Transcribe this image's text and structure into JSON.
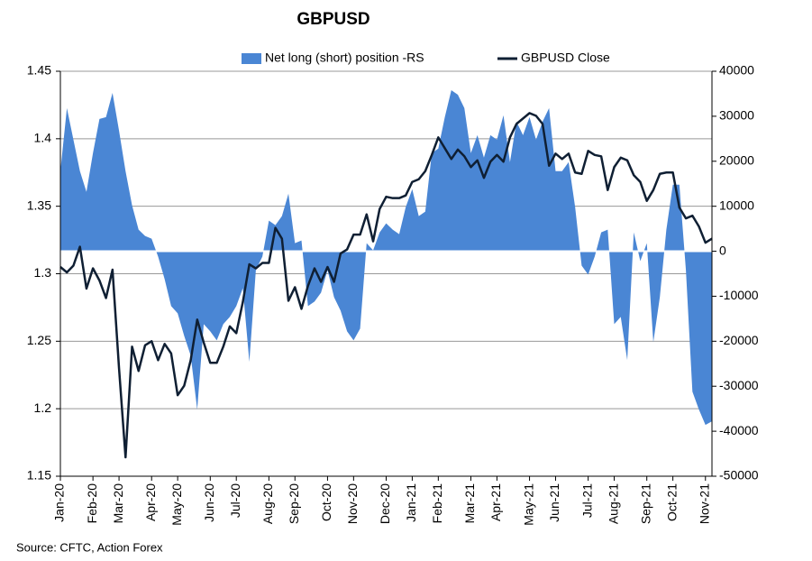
{
  "chart_data": {
    "type": "line-area",
    "title": "GBPUSD",
    "source": "Source: CFTC, Action Forex",
    "legend": "top",
    "grid": true,
    "categories": [
      "Jan-20",
      null,
      null,
      null,
      null,
      "Feb-20",
      null,
      null,
      null,
      "Mar-20",
      null,
      null,
      null,
      null,
      "Apr-20",
      null,
      null,
      null,
      "May-20",
      null,
      null,
      null,
      null,
      "Jun-20",
      null,
      null,
      null,
      "Jul-20",
      null,
      null,
      null,
      null,
      "Aug-20",
      null,
      null,
      null,
      "Sep-20",
      null,
      null,
      null,
      null,
      "Oct-20",
      null,
      null,
      null,
      "Nov-20",
      null,
      null,
      null,
      null,
      "Dec-20",
      null,
      null,
      null,
      "Jan-21",
      null,
      null,
      null,
      "Feb-21",
      null,
      null,
      null,
      null,
      "Mar-21",
      null,
      null,
      null,
      "Apr-21",
      null,
      null,
      null,
      null,
      "May-21",
      null,
      null,
      null,
      "Jun-21",
      null,
      null,
      null,
      null,
      "Jul-21",
      null,
      null,
      null,
      "Aug-21",
      null,
      null,
      null,
      null,
      "Sep-21",
      null,
      null,
      null,
      "Oct-21",
      null,
      null,
      null,
      null,
      "Nov-21",
      null
    ],
    "ylim": [
      1.15,
      1.45
    ],
    "yticks": [
      1.15,
      1.2,
      1.25,
      1.3,
      1.35,
      1.4,
      1.45
    ],
    "y2lim": [
      -50000,
      40000
    ],
    "y2ticks": [
      -50000,
      -40000,
      -30000,
      -20000,
      -10000,
      0,
      10000,
      20000,
      30000,
      40000
    ],
    "series": [
      {
        "name": "Net long (short) position -RS",
        "kind": "area",
        "axis": "y2",
        "color": "#4a86d4",
        "values": [
          17800,
          31800,
          24800,
          17800,
          13200,
          21800,
          29400,
          29800,
          35200,
          26800,
          17800,
          10200,
          4800,
          3400,
          2800,
          -1200,
          -6200,
          -12200,
          -13800,
          -18800,
          -23200,
          -35200,
          -16200,
          -17800,
          -19800,
          -16200,
          -14600,
          -12200,
          -8200,
          -24600,
          -4200,
          -1200,
          6800,
          5800,
          7800,
          12800,
          1800,
          2400,
          -12200,
          -11200,
          -9200,
          -4200,
          -10200,
          -13200,
          -17800,
          -19800,
          -17200,
          1800,
          200,
          4200,
          6200,
          4800,
          3800,
          9800,
          13800,
          7800,
          8800,
          21800,
          22800,
          29800,
          35800,
          34800,
          31800,
          21800,
          25800,
          20800,
          25800,
          24800,
          30200,
          19800,
          28800,
          25800,
          29800,
          24800,
          28800,
          31800,
          17800,
          17800,
          19800,
          9800,
          -3200,
          -5200,
          -1200,
          4200,
          4800,
          -16200,
          -14600,
          -24200,
          4200,
          -2200,
          1800,
          -20200,
          -10200,
          4800,
          14800,
          14800,
          -4200,
          -31200,
          -35200,
          -38600,
          -37800
        ]
      },
      {
        "name": "GBPUSD Close",
        "kind": "line",
        "axis": "y",
        "color": "#0f1f33",
        "values": [
          1.305,
          1.301,
          1.306,
          1.32,
          1.289,
          1.304,
          1.295,
          1.282,
          1.303,
          1.23,
          1.164,
          1.246,
          1.228,
          1.247,
          1.25,
          1.236,
          1.248,
          1.241,
          1.21,
          1.217,
          1.236,
          1.266,
          1.249,
          1.234,
          1.234,
          1.246,
          1.261,
          1.256,
          1.279,
          1.307,
          1.304,
          1.308,
          1.308,
          1.334,
          1.326,
          1.28,
          1.29,
          1.274,
          1.291,
          1.304,
          1.294,
          1.305,
          1.294,
          1.315,
          1.318,
          1.329,
          1.329,
          1.344,
          1.324,
          1.348,
          1.357,
          1.356,
          1.356,
          1.358,
          1.368,
          1.37,
          1.376,
          1.388,
          1.401,
          1.393,
          1.385,
          1.392,
          1.387,
          1.379,
          1.384,
          1.371,
          1.383,
          1.388,
          1.383,
          1.401,
          1.411,
          1.415,
          1.419,
          1.417,
          1.411,
          1.38,
          1.389,
          1.385,
          1.389,
          1.375,
          1.374,
          1.391,
          1.388,
          1.387,
          1.362,
          1.379,
          1.386,
          1.384,
          1.373,
          1.368,
          1.354,
          1.362,
          1.374,
          1.375,
          1.375,
          1.349,
          1.341,
          1.343,
          1.335,
          1.323,
          1.326
        ]
      }
    ]
  }
}
